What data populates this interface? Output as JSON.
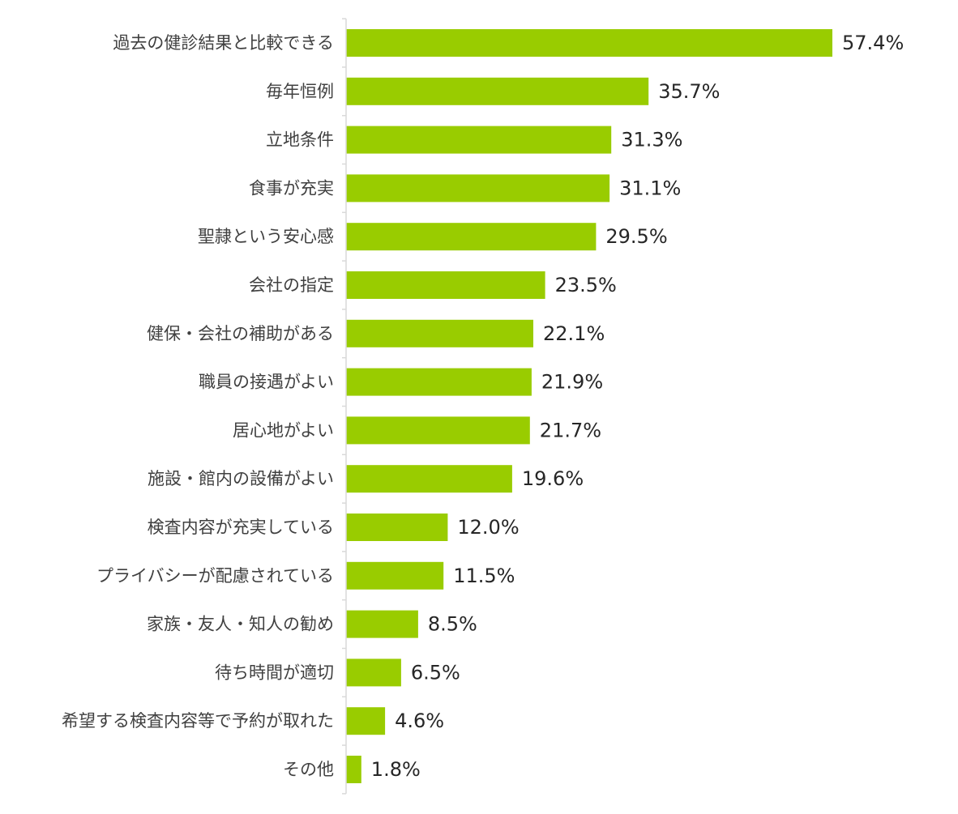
{
  "colors": {
    "bar": "#99cc00",
    "axis": "#d9d9d9",
    "category_text": "#404040",
    "value_text": "#262626"
  },
  "value_suffix": "%",
  "chart_data": {
    "type": "bar",
    "orientation": "horizontal",
    "categories": [
      "過去の健診結果と比較できる",
      "毎年恒例",
      "立地条件",
      "食事が充実",
      "聖隷という安心感",
      "会社の指定",
      "健保・会社の補助がある",
      "職員の接遇がよい",
      "居心地がよい",
      "施設・館内の設備がよい",
      "検査内容が充実している",
      "プライバシーが配慮されている",
      "家族・友人・知人の勧め",
      "待ち時間が適切",
      "希望する検査内容等で予約が取れた",
      "その他"
    ],
    "values": [
      57.4,
      35.7,
      31.3,
      31.1,
      29.5,
      23.5,
      22.1,
      21.9,
      21.7,
      19.6,
      12.0,
      11.5,
      8.5,
      6.5,
      4.6,
      1.8
    ],
    "value_labels": [
      "57.4%",
      "35.7%",
      "31.3%",
      "31.1%",
      "29.5%",
      "23.5%",
      "22.1%",
      "21.9%",
      "21.7%",
      "19.6%",
      "12.0%",
      "11.5%",
      "8.5%",
      "6.5%",
      "4.6%",
      "1.8%"
    ],
    "xlim": [
      0,
      57.4
    ],
    "title": "",
    "xlabel": "",
    "ylabel": "",
    "grid": false,
    "legend": "none",
    "data_labels": "outside-end"
  }
}
